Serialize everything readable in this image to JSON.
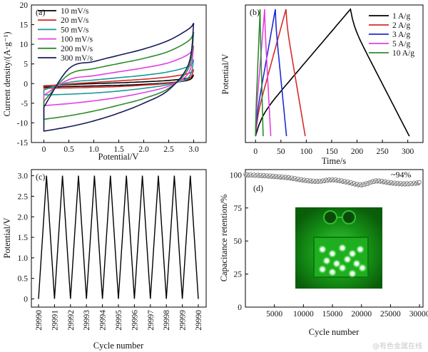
{
  "chart_data": [
    {
      "panel": "(a)",
      "type": "line",
      "xlabel": "Potential/V",
      "ylabel": "Current density/(A·g⁻¹)",
      "xlim": [
        -0.25,
        3.25
      ],
      "ylim": [
        -15,
        20
      ],
      "xticks": [
        "0",
        "0.5",
        "1.0",
        "1.5",
        "2.0",
        "2.5",
        "3.0"
      ],
      "yticks": [
        "-15",
        "-10",
        "-5",
        "0",
        "5",
        "10",
        "15",
        "20"
      ],
      "legend_position": "top-left",
      "series": [
        {
          "name": "10 mV/s",
          "color": "#000000",
          "upper": [
            [
              0,
              -0.6
            ],
            [
              0.5,
              -0.25
            ],
            [
              1.0,
              0.0
            ],
            [
              1.5,
              0.2
            ],
            [
              2.0,
              0.45
            ],
            [
              2.5,
              0.8
            ],
            [
              2.9,
              1.4
            ],
            [
              3.0,
              2.2
            ]
          ],
          "lower": [
            [
              0,
              -0.9
            ],
            [
              0.5,
              -0.75
            ],
            [
              1.0,
              -0.6
            ],
            [
              1.5,
              -0.45
            ],
            [
              2.0,
              -0.2
            ],
            [
              2.5,
              0.2
            ],
            [
              2.9,
              0.9
            ],
            [
              3.0,
              2.2
            ]
          ]
        },
        {
          "name": "20 mV/s",
          "color": "#d62b2b",
          "upper": [
            [
              0,
              -0.7
            ],
            [
              0.5,
              -0.1
            ],
            [
              1.0,
              0.3
            ],
            [
              1.5,
              0.7
            ],
            [
              2.0,
              1.1
            ],
            [
              2.5,
              1.7
            ],
            [
              2.9,
              2.6
            ],
            [
              3.0,
              3.6
            ]
          ],
          "lower": [
            [
              0,
              -1.2
            ],
            [
              0.5,
              -1.1
            ],
            [
              1.0,
              -0.95
            ],
            [
              1.5,
              -0.75
            ],
            [
              2.0,
              -0.4
            ],
            [
              2.5,
              0.1
            ],
            [
              2.9,
              1.2
            ],
            [
              3.0,
              3.6
            ]
          ]
        },
        {
          "name": "50 mV/s",
          "color": "#1a9a96",
          "upper": [
            [
              0,
              -1.6
            ],
            [
              0.5,
              0.3
            ],
            [
              1.0,
              0.9
            ],
            [
              1.5,
              1.5
            ],
            [
              2.0,
              2.1
            ],
            [
              2.5,
              3.0
            ],
            [
              2.9,
              4.4
            ],
            [
              3.0,
              6.1
            ]
          ],
          "lower": [
            [
              0,
              -2.9
            ],
            [
              0.5,
              -2.7
            ],
            [
              1.0,
              -2.4
            ],
            [
              1.5,
              -1.9
            ],
            [
              2.0,
              -1.2
            ],
            [
              2.5,
              -0.2
            ],
            [
              2.9,
              1.6
            ],
            [
              3.0,
              6.1
            ]
          ]
        },
        {
          "name": "100 mV/s",
          "color": "#e33fe3",
          "upper": [
            [
              0,
              -3.0
            ],
            [
              0.5,
              1.0
            ],
            [
              1.0,
              2.0
            ],
            [
              1.5,
              3.0
            ],
            [
              2.0,
              4.0
            ],
            [
              2.5,
              5.3
            ],
            [
              2.9,
              7.5
            ],
            [
              3.0,
              9.6
            ]
          ],
          "lower": [
            [
              0,
              -5.6
            ],
            [
              0.5,
              -5.1
            ],
            [
              1.0,
              -4.4
            ],
            [
              1.5,
              -3.5
            ],
            [
              2.0,
              -2.3
            ],
            [
              2.5,
              -0.6
            ],
            [
              2.9,
              2.7
            ],
            [
              3.0,
              9.6
            ]
          ]
        },
        {
          "name": "200 mV/s",
          "color": "#2e8b2e",
          "upper": [
            [
              0,
              -4.5
            ],
            [
              0.5,
              2.3
            ],
            [
              1.0,
              3.8
            ],
            [
              1.5,
              5.1
            ],
            [
              2.0,
              6.4
            ],
            [
              2.5,
              8.2
            ],
            [
              2.9,
              10.9
            ],
            [
              3.0,
              13.1
            ]
          ],
          "lower": [
            [
              0,
              -9.1
            ],
            [
              0.5,
              -8.2
            ],
            [
              1.0,
              -7.0
            ],
            [
              1.5,
              -5.5
            ],
            [
              2.0,
              -3.8
            ],
            [
              2.5,
              -1.2
            ],
            [
              2.9,
              4.0
            ],
            [
              3.0,
              13.1
            ]
          ]
        },
        {
          "name": "300 mV/s",
          "color": "#161a5a",
          "upper": [
            [
              0,
              -6.0
            ],
            [
              0.5,
              3.8
            ],
            [
              1.0,
              5.6
            ],
            [
              1.5,
              7.2
            ],
            [
              2.0,
              8.8
            ],
            [
              2.5,
              11.0
            ],
            [
              2.9,
              13.9
            ],
            [
              3.0,
              15.4
            ]
          ],
          "lower": [
            [
              0,
              -12.1
            ],
            [
              0.5,
              -11.0
            ],
            [
              1.0,
              -9.5
            ],
            [
              1.5,
              -7.5
            ],
            [
              2.0,
              -5.0
            ],
            [
              2.5,
              -1.6
            ],
            [
              2.9,
              5.0
            ],
            [
              3.0,
              15.4
            ]
          ]
        }
      ]
    },
    {
      "panel": "(b)",
      "type": "line",
      "xlabel": "Time/s",
      "ylabel": "Potential/V",
      "xlim": [
        -20,
        330
      ],
      "ylim": [
        -0.15,
        3.1
      ],
      "xticks": [
        "0",
        "50",
        "100",
        "150",
        "200",
        "250",
        "300"
      ],
      "legend_position": "top-right",
      "series": [
        {
          "name": "1 A/g",
          "color": "#000000",
          "peak_time": 187,
          "end_time": 303
        },
        {
          "name": "2 A/g",
          "color": "#d62b2b",
          "peak_time": 60,
          "end_time": 98
        },
        {
          "name": "3 A/g",
          "color": "#1f2ad6",
          "peak_time": 39,
          "end_time": 61
        },
        {
          "name": "5 A/g",
          "color": "#e33fe3",
          "peak_time": 18,
          "end_time": 30
        },
        {
          "name": "10 A/g",
          "color": "#2e8b2e",
          "peak_time": 9,
          "end_time": 15
        }
      ]
    },
    {
      "panel": "(c)",
      "type": "line",
      "xlabel": "Cycle number",
      "ylabel": "Potential/V",
      "ylim": [
        -0.2,
        3.15
      ],
      "yticks": [
        "0",
        "0.5",
        "1.0",
        "1.5",
        "2.0",
        "2.5",
        "3.0"
      ],
      "xticks": [
        "29990",
        "29991",
        "29992",
        "29993",
        "29994",
        "29995",
        "29996",
        "29997",
        "29998",
        "29999",
        "29990"
      ],
      "cycles": 10,
      "vmin": 0,
      "vmax": 3.0
    },
    {
      "panel": "(d)",
      "type": "scatter",
      "xlabel": "Cycle number",
      "ylabel": "Capacitance retention/%",
      "xlim": [
        0,
        30600
      ],
      "ylim": [
        0,
        104
      ],
      "xticks": [
        "5000",
        "10000",
        "15000",
        "20000",
        "25000",
        "30000"
      ],
      "yticks": [
        "0",
        "25",
        "50",
        "75",
        "100"
      ],
      "annotation": "~94%",
      "x": [
        0,
        2500,
        5000,
        7500,
        10000,
        12500,
        15000,
        17500,
        20000,
        22500,
        25000,
        27500,
        30000
      ],
      "y": [
        100,
        99.6,
        98.8,
        97.8,
        96.0,
        95.1,
        96.3,
        94.6,
        92.5,
        95.4,
        94.0,
        93.2,
        94.0
      ]
    }
  ],
  "watermark": "@有色金属在线"
}
